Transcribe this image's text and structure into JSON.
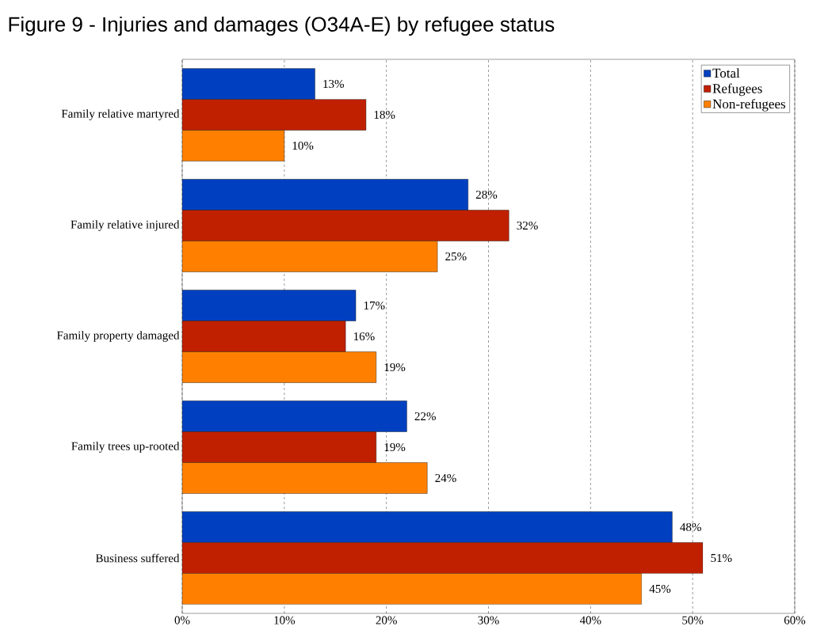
{
  "chart_data": {
    "type": "bar",
    "orientation": "horizontal",
    "title": "Figure 9 - Injuries and damages (O34A-E) by refugee status",
    "categories": [
      "Family relative martyred",
      "Family relative injured",
      "Family property damaged",
      "Family trees up-rooted",
      "Business suffered"
    ],
    "series": [
      {
        "name": "Total",
        "color": "#0040c0",
        "values": [
          13,
          28,
          17,
          22,
          48
        ],
        "value_labels": [
          "13%",
          "28%",
          "17%",
          "22%",
          "48%"
        ]
      },
      {
        "name": "Refugees",
        "color": "#c02000",
        "values": [
          18,
          32,
          16,
          19,
          51
        ],
        "value_labels": [
          "18%",
          "32%",
          "16%",
          "19%",
          "51%"
        ]
      },
      {
        "name": "Non-refugees",
        "color": "#ff8000",
        "values": [
          10,
          25,
          19,
          24,
          45
        ],
        "value_labels": [
          "10%",
          "25%",
          "19%",
          "24%",
          "45%"
        ]
      }
    ],
    "xlim": [
      0,
      60
    ],
    "xticks": [
      {
        "value": 0,
        "label": "0%"
      },
      {
        "value": 10,
        "label": "10%"
      },
      {
        "value": 20,
        "label": "20%"
      },
      {
        "value": 30,
        "label": "30%"
      },
      {
        "value": 40,
        "label": "40%"
      },
      {
        "value": 50,
        "label": "50%"
      },
      {
        "value": 60,
        "label": "60%"
      }
    ],
    "grid": "x",
    "line_style": "dashed",
    "legend": "top right"
  }
}
